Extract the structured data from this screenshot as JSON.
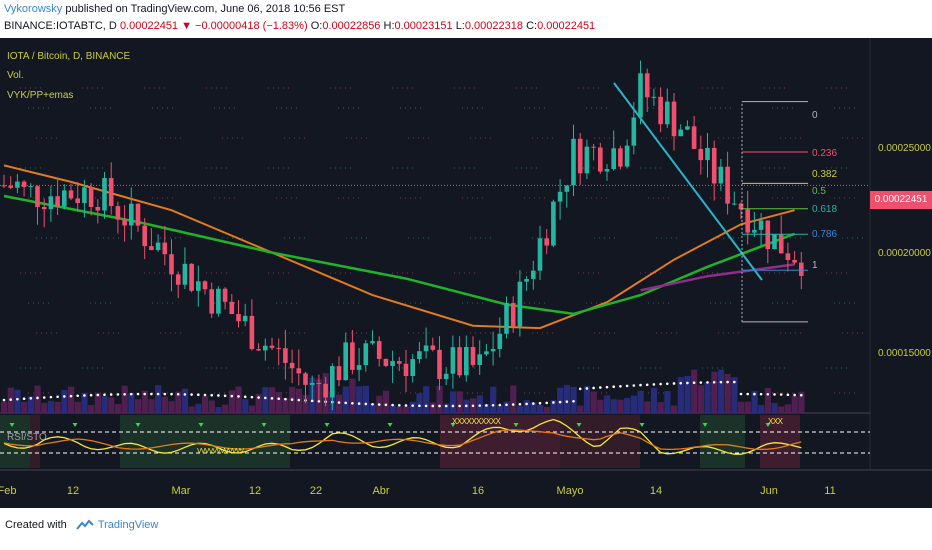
{
  "header": {
    "author": "Vykorowsky",
    "published": " published on TradingView.com, June 06, 2018 10:56 EST",
    "symbol": "BINANCE:IOTABTC, D",
    "last": "0.00022451",
    "change_arrow": "▼",
    "change": "−0.00000418 (−1.83%)",
    "open_label": "O:",
    "open": "0.00022856",
    "high_label": "H:",
    "high": "0.00023151",
    "low_label": "L:",
    "low": "0.00022318",
    "close_label": "C:",
    "close": "0.00022451"
  },
  "legend": {
    "main": "IOTA / Bitcoin, D, BINANCE",
    "volume": "Vol.",
    "indicator": "VYK/PP+emas",
    "oscillator": "RSI/STO"
  },
  "price_scale": {
    "labels": [
      "0.00025000",
      "0.00020000",
      "0.00015000"
    ],
    "current": "0.00022451"
  },
  "time_scale": {
    "labels": [
      "Feb",
      "12",
      "Mar",
      "12",
      "22",
      "Abr",
      "16",
      "Mayo",
      "14",
      "Jun",
      "11"
    ]
  },
  "fib_levels": [
    {
      "label": "0",
      "color": "#b2b5be"
    },
    {
      "label": "0.236",
      "color": "#f0506e"
    },
    {
      "label": "0.382",
      "color": "#c9cc3f"
    },
    {
      "label": "0.5",
      "color": "#5fbd3f"
    },
    {
      "label": "0.618",
      "color": "#26b5a0"
    },
    {
      "label": "0.786",
      "color": "#3a86d1"
    },
    {
      "label": "1",
      "color": "#b2b5be"
    }
  ],
  "oscillator_marks": {
    "overbought": "XXXXXXXXXX",
    "overbought_june": "XXX",
    "oversold": "VVVVVVVVVVVV"
  },
  "colors": {
    "background": "#131722",
    "up_candle": "#26b5a0",
    "down_candle": "#f0506e",
    "ema_fast": "#e07b1f",
    "ema_mid": "#1fb32a",
    "ema_slow": "#8e2d8a",
    "trendline": "#2fb3c8",
    "axis_text": "#c9cc3f"
  },
  "footer": {
    "created": "Created with",
    "brand": "TradingView"
  },
  "chart_data": {
    "type": "candlestick",
    "title": "IOTA / Bitcoin, D, BINANCE",
    "x_range": [
      "2018-01-29",
      "2018-06-06"
    ],
    "y_range": [
      0.000128,
      0.000287
    ],
    "ohlc_sample": [
      {
        "date": "2018-02-01",
        "close": 0.000221
      },
      {
        "date": "2018-02-12",
        "close": 0.000222
      },
      {
        "date": "2018-03-01",
        "close": 0.000178
      },
      {
        "date": "2018-03-12",
        "close": 0.00015
      },
      {
        "date": "2018-03-16",
        "close": 0.000138
      },
      {
        "date": "2018-03-22",
        "close": 0.000152
      },
      {
        "date": "2018-04-01",
        "close": 0.00015
      },
      {
        "date": "2018-04-10",
        "close": 0.000147
      },
      {
        "date": "2018-04-16",
        "close": 0.000178
      },
      {
        "date": "2018-04-24",
        "close": 0.000238
      },
      {
        "date": "2018-05-01",
        "close": 0.00024
      },
      {
        "date": "2018-05-04",
        "close": 0.000265
      },
      {
        "date": "2018-05-10",
        "close": 0.00025
      },
      {
        "date": "2018-05-14",
        "close": 0.000232
      },
      {
        "date": "2018-05-24",
        "close": 0.000201
      },
      {
        "date": "2018-05-29",
        "close": 0.000193
      },
      {
        "date": "2018-06-01",
        "close": 0.000255
      },
      {
        "date": "2018-06-06",
        "close": 0.00022451
      }
    ],
    "ema_fast": [
      [
        0,
        0.000233
      ],
      [
        10,
        0.000226
      ],
      [
        25,
        0.000214
      ],
      [
        40,
        0.000196
      ],
      [
        55,
        0.000178
      ],
      [
        70,
        0.000165
      ],
      [
        80,
        0.000164
      ],
      [
        90,
        0.000175
      ],
      [
        100,
        0.000193
      ],
      [
        110,
        0.000208
      ],
      [
        118,
        0.000214
      ]
    ],
    "ema_mid": [
      [
        0,
        0.00022
      ],
      [
        20,
        0.000209
      ],
      [
        40,
        0.000196
      ],
      [
        60,
        0.000185
      ],
      [
        75,
        0.000174
      ],
      [
        85,
        0.00017
      ],
      [
        95,
        0.000178
      ],
      [
        105,
        0.00019
      ],
      [
        118,
        0.000204
      ]
    ],
    "ema_slow": [
      [
        95,
        0.00018
      ],
      [
        105,
        0.000186
      ],
      [
        118,
        0.000191
      ]
    ],
    "fib_prices": [
      0.00026,
      0.00023867,
      0.00022537,
      0.00021458,
      0.00020379,
      0.00018852,
      0.00016666
    ]
  }
}
